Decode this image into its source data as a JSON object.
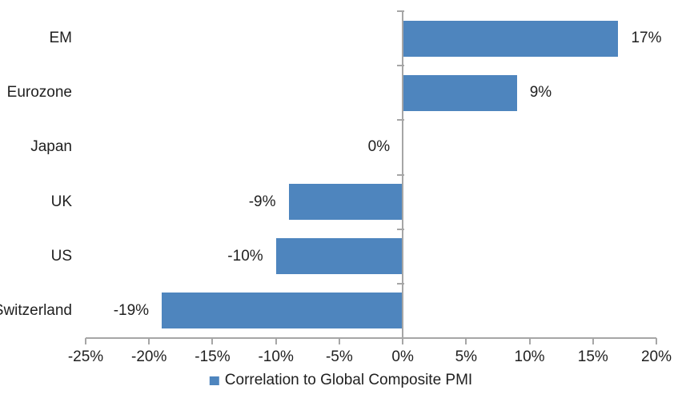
{
  "chart_data": {
    "type": "bar",
    "orientation": "horizontal",
    "title": "",
    "xlabel": "",
    "ylabel": "",
    "categories": [
      "EM",
      "Eurozone",
      "Japan",
      "UK",
      "US",
      "Switzerland"
    ],
    "values": [
      17,
      9,
      0,
      -9,
      -10,
      -19
    ],
    "value_labels": [
      "17%",
      "9%",
      "0%",
      "-9%",
      "-10%",
      "-19%"
    ],
    "x_ticks": [
      -25,
      -20,
      -15,
      -10,
      -5,
      0,
      5,
      10,
      15,
      20
    ],
    "x_tick_labels": [
      "-25%",
      "-20%",
      "-15%",
      "-10%",
      "-5%",
      "0%",
      "5%",
      "10%",
      "15%",
      "20%"
    ],
    "xlim": [
      -25,
      20
    ],
    "grid": false,
    "legend": "Correlation to Global Composite PMI",
    "legend_position": "bottom-center",
    "colors": {
      "bar": "#4E85BE",
      "axis": "#A6A6A6",
      "text": "#1F1F1F",
      "background": "#FFFFFF"
    }
  }
}
